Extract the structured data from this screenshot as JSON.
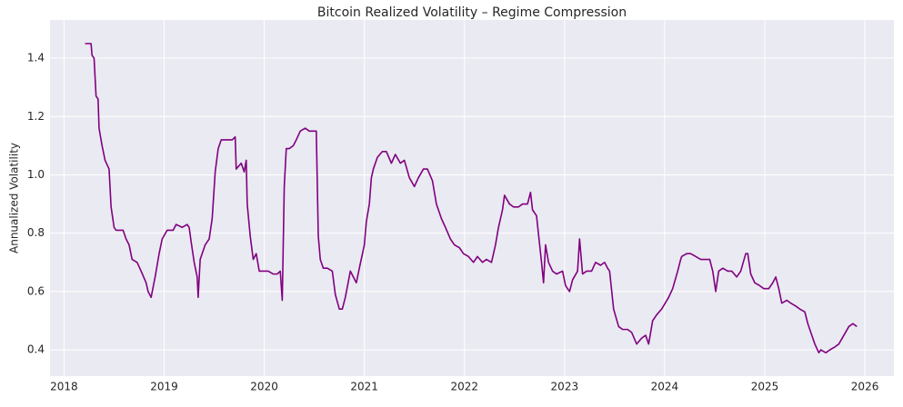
{
  "chart_data": {
    "type": "line",
    "title": "Bitcoin Realized Volatility – Regime Compression",
    "y_label": "Annualized Volatility",
    "x": [
      2018.21,
      2018.27,
      2018.28,
      2018.3,
      2018.32,
      2018.34,
      2018.35,
      2018.38,
      2018.41,
      2018.45,
      2018.47,
      2018.5,
      2018.52,
      2018.54,
      2018.59,
      2018.62,
      2018.65,
      2018.68,
      2018.73,
      2018.77,
      2018.82,
      2018.84,
      2018.87,
      2018.91,
      2018.95,
      2018.98,
      2019.03,
      2019.09,
      2019.12,
      2019.18,
      2019.23,
      2019.25,
      2019.27,
      2019.3,
      2019.33,
      2019.34,
      2019.36,
      2019.41,
      2019.45,
      2019.48,
      2019.51,
      2019.54,
      2019.57,
      2019.63,
      2019.68,
      2019.71,
      2019.72,
      2019.77,
      2019.8,
      2019.82,
      2019.83,
      2019.86,
      2019.89,
      2019.92,
      2019.95,
      2020.0,
      2020.04,
      2020.09,
      2020.13,
      2020.16,
      2020.18,
      2020.2,
      2020.22,
      2020.25,
      2020.29,
      2020.32,
      2020.36,
      2020.41,
      2020.45,
      2020.5,
      2020.52,
      2020.54,
      2020.56,
      2020.59,
      2020.63,
      2020.68,
      2020.71,
      2020.75,
      2020.78,
      2020.81,
      2020.86,
      2020.89,
      2020.92,
      2020.95,
      2021.0,
      2021.02,
      2021.05,
      2021.07,
      2021.09,
      2021.13,
      2021.18,
      2021.22,
      2021.27,
      2021.31,
      2021.36,
      2021.4,
      2021.45,
      2021.5,
      2021.54,
      2021.59,
      2021.63,
      2021.68,
      2021.72,
      2021.77,
      2021.81,
      2021.86,
      2021.9,
      2021.95,
      2021.99,
      2022.04,
      2022.09,
      2022.13,
      2022.18,
      2022.22,
      2022.27,
      2022.31,
      2022.34,
      2022.38,
      2022.4,
      2022.45,
      2022.49,
      2022.54,
      2022.58,
      2022.63,
      2022.66,
      2022.68,
      2022.72,
      2022.77,
      2022.79,
      2022.81,
      2022.84,
      2022.88,
      2022.92,
      2022.98,
      2023.01,
      2023.05,
      2023.08,
      2023.13,
      2023.15,
      2023.18,
      2023.22,
      2023.27,
      2023.31,
      2023.36,
      2023.4,
      2023.43,
      2023.45,
      2023.49,
      2023.54,
      2023.58,
      2023.63,
      2023.67,
      2023.72,
      2023.77,
      2023.81,
      2023.84,
      2023.88,
      2023.92,
      2023.97,
      2024.04,
      2024.08,
      2024.13,
      2024.16,
      2024.17,
      2024.22,
      2024.26,
      2024.31,
      2024.36,
      2024.4,
      2024.45,
      2024.48,
      2024.51,
      2024.54,
      2024.58,
      2024.63,
      2024.67,
      2024.72,
      2024.76,
      2024.81,
      2024.83,
      2024.86,
      2024.9,
      2024.95,
      2024.99,
      2025.04,
      2025.08,
      2025.11,
      2025.14,
      2025.17,
      2025.22,
      2025.26,
      2025.31,
      2025.35,
      2025.4,
      2025.43,
      2025.46,
      2025.5,
      2025.54,
      2025.56,
      2025.61,
      2025.65,
      2025.7,
      2025.74,
      2025.79,
      2025.84,
      2025.88,
      2025.92
    ],
    "series": [
      {
        "name": "Realized Volatility",
        "color": "#800080",
        "values": [
          1.45,
          1.45,
          1.41,
          1.4,
          1.27,
          1.26,
          1.16,
          1.1,
          1.05,
          1.02,
          0.89,
          0.82,
          0.81,
          0.81,
          0.81,
          0.78,
          0.76,
          0.71,
          0.7,
          0.67,
          0.63,
          0.6,
          0.58,
          0.65,
          0.73,
          0.78,
          0.81,
          0.81,
          0.83,
          0.82,
          0.83,
          0.82,
          0.77,
          0.7,
          0.65,
          0.58,
          0.71,
          0.76,
          0.78,
          0.85,
          1.01,
          1.09,
          1.12,
          1.12,
          1.12,
          1.13,
          1.02,
          1.04,
          1.01,
          1.05,
          0.9,
          0.79,
          0.71,
          0.73,
          0.67,
          0.67,
          0.67,
          0.66,
          0.66,
          0.67,
          0.57,
          0.96,
          1.09,
          1.09,
          1.1,
          1.12,
          1.15,
          1.16,
          1.15,
          1.15,
          1.15,
          0.79,
          0.71,
          0.68,
          0.68,
          0.67,
          0.59,
          0.54,
          0.54,
          0.58,
          0.67,
          0.65,
          0.63,
          0.68,
          0.76,
          0.84,
          0.9,
          0.99,
          1.02,
          1.06,
          1.08,
          1.08,
          1.04,
          1.07,
          1.04,
          1.05,
          0.99,
          0.96,
          0.99,
          1.02,
          1.02,
          0.98,
          0.9,
          0.85,
          0.82,
          0.78,
          0.76,
          0.75,
          0.73,
          0.72,
          0.7,
          0.72,
          0.7,
          0.71,
          0.7,
          0.76,
          0.82,
          0.88,
          0.93,
          0.9,
          0.89,
          0.89,
          0.9,
          0.9,
          0.94,
          0.88,
          0.86,
          0.7,
          0.63,
          0.76,
          0.7,
          0.67,
          0.66,
          0.67,
          0.62,
          0.6,
          0.64,
          0.67,
          0.78,
          0.66,
          0.67,
          0.67,
          0.7,
          0.69,
          0.7,
          0.68,
          0.67,
          0.54,
          0.48,
          0.47,
          0.47,
          0.46,
          0.42,
          0.44,
          0.45,
          0.42,
          0.5,
          0.52,
          0.54,
          0.58,
          0.61,
          0.67,
          0.71,
          0.72,
          0.73,
          0.73,
          0.72,
          0.71,
          0.71,
          0.71,
          0.67,
          0.6,
          0.67,
          0.68,
          0.67,
          0.67,
          0.65,
          0.67,
          0.73,
          0.73,
          0.66,
          0.63,
          0.62,
          0.61,
          0.61,
          0.63,
          0.65,
          0.61,
          0.56,
          0.57,
          0.56,
          0.55,
          0.54,
          0.53,
          0.49,
          0.46,
          0.42,
          0.39,
          0.4,
          0.39,
          0.4,
          0.41,
          0.42,
          0.45,
          0.48,
          0.49,
          0.48
        ]
      }
    ],
    "xlim": [
      2017.86,
      2026.29
    ],
    "xticks": [
      2018,
      2019,
      2020,
      2021,
      2022,
      2023,
      2024,
      2025,
      2026
    ],
    "ylim": [
      0.31,
      1.531
    ],
    "yticks": [
      0.4,
      0.6,
      0.8,
      {
        "value": 1,
        "label": "1.0"
      },
      1.2,
      1.4
    ],
    "grid": true
  }
}
